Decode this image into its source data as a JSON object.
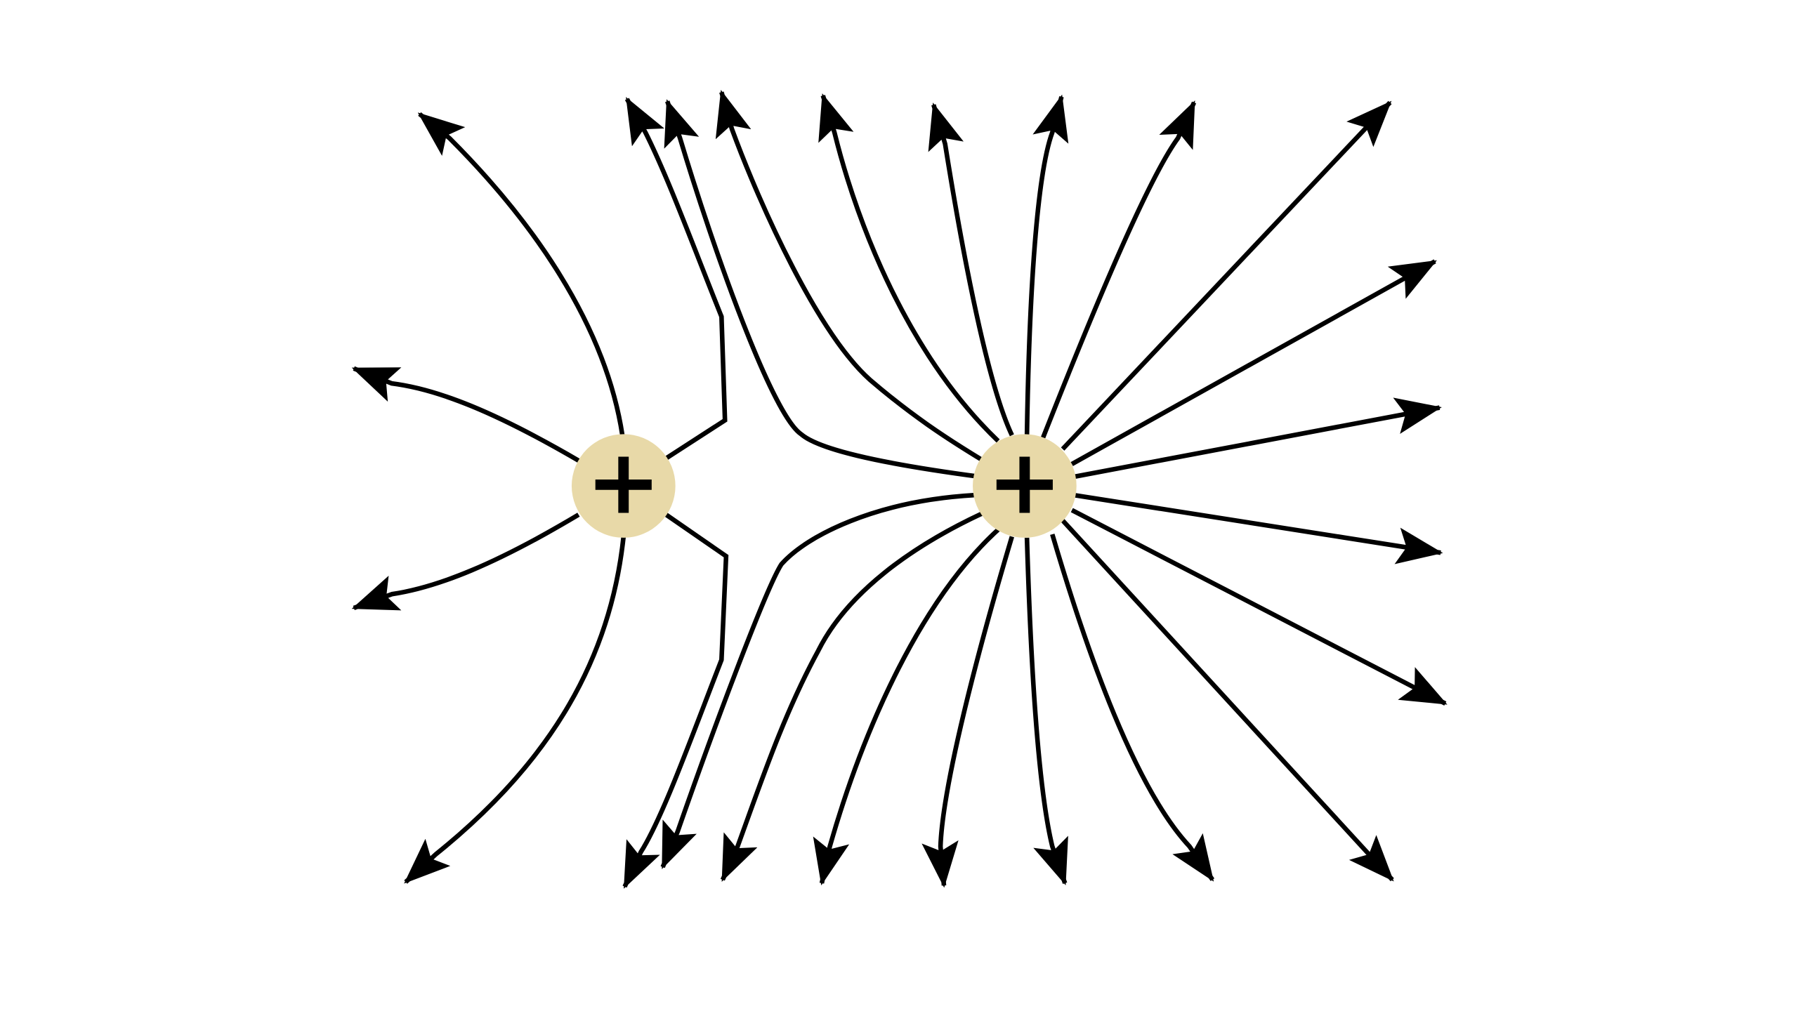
{
  "charges": [
    {
      "label": "+"
    },
    {
      "label": "+"
    }
  ]
}
